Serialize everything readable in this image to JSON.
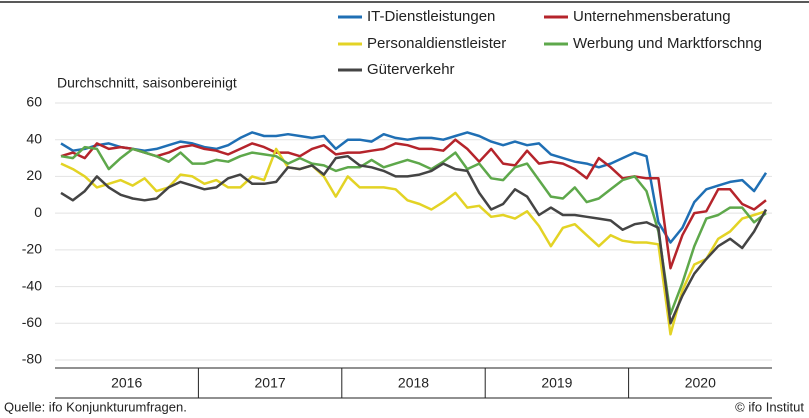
{
  "chart_data": {
    "type": "line",
    "subtitle": "Durchschnitt, saisonbereinigt",
    "source": "Quelle: ifo Konjunkturumfragen.",
    "copyright": "© ifo Institut",
    "x": [
      2016.042,
      2016.125,
      2016.208,
      2016.292,
      2016.375,
      2016.458,
      2016.542,
      2016.625,
      2016.708,
      2016.792,
      2016.875,
      2016.958,
      2017.042,
      2017.125,
      2017.208,
      2017.292,
      2017.375,
      2017.458,
      2017.542,
      2017.625,
      2017.708,
      2017.792,
      2017.875,
      2017.958,
      2018.042,
      2018.125,
      2018.208,
      2018.292,
      2018.375,
      2018.458,
      2018.542,
      2018.625,
      2018.708,
      2018.792,
      2018.875,
      2018.958,
      2019.042,
      2019.125,
      2019.208,
      2019.292,
      2019.375,
      2019.458,
      2019.542,
      2019.625,
      2019.708,
      2019.792,
      2019.875,
      2019.958,
      2020.042,
      2020.125,
      2020.208,
      2020.292,
      2020.375,
      2020.458,
      2020.542,
      2020.625,
      2020.708,
      2020.792,
      2020.875,
      2020.958
    ],
    "xlim": [
      2016,
      2021
    ],
    "xticks": [
      {
        "value": 2016.5,
        "label": "2016"
      },
      {
        "value": 2017.5,
        "label": "2017"
      },
      {
        "value": 2018.5,
        "label": "2018"
      },
      {
        "value": 2019.5,
        "label": "2019"
      },
      {
        "value": 2020.5,
        "label": "2020"
      }
    ],
    "ylim": [
      -80,
      60
    ],
    "yticks": [
      -80,
      -60,
      -40,
      -20,
      0,
      20,
      40,
      60
    ],
    "grid": true,
    "legend": "top",
    "series": [
      {
        "name": "IT-Dienstleistungen",
        "color": "#1f6fb4",
        "values": [
          38,
          34,
          35,
          37,
          38,
          36,
          35,
          34,
          35,
          37,
          39,
          38,
          36,
          35,
          37,
          41,
          44,
          42,
          42,
          43,
          42,
          41,
          42,
          35,
          40,
          40,
          39,
          43,
          41,
          40,
          41,
          41,
          40,
          42,
          44,
          42,
          39,
          37,
          39,
          37,
          38,
          32,
          30,
          28,
          27,
          25,
          27,
          30,
          33,
          31,
          -5,
          -16,
          -8,
          6,
          13,
          15,
          17,
          18,
          12,
          22
        ]
      },
      {
        "name": "Unternehmensberatung",
        "color": "#b5242b",
        "values": [
          31,
          33,
          30,
          38,
          35,
          36,
          35,
          33,
          31,
          33,
          36,
          37,
          35,
          34,
          32,
          35,
          38,
          36,
          33,
          33,
          31,
          35,
          37,
          32,
          33,
          33,
          34,
          35,
          38,
          37,
          35,
          35,
          34,
          40,
          35,
          28,
          35,
          27,
          26,
          34,
          27,
          28,
          27,
          24,
          19,
          30,
          25,
          19,
          20,
          19,
          19,
          -30,
          -12,
          0,
          1,
          13,
          13,
          5,
          2,
          7
        ]
      },
      {
        "name": "Personaldienstleister",
        "color": "#e3d325",
        "values": [
          27,
          24,
          20,
          14,
          16,
          18,
          15,
          19,
          12,
          14,
          21,
          20,
          16,
          18,
          14,
          14,
          20,
          18,
          35,
          25,
          24,
          26,
          20,
          9,
          20,
          14,
          14,
          14,
          13,
          7,
          5,
          2,
          6,
          11,
          3,
          4,
          -2,
          -1,
          -3,
          1,
          -7,
          -18,
          -8,
          -6,
          -12,
          -18,
          -12,
          -15,
          -16,
          -16,
          -17,
          -66,
          -42,
          -28,
          -25,
          -14,
          -10,
          -3,
          -1,
          1
        ]
      },
      {
        "name": "Werbung und Marktforschng",
        "color": "#5ea84b",
        "values": [
          31,
          30,
          36,
          35,
          24,
          30,
          35,
          33,
          31,
          28,
          33,
          27,
          27,
          29,
          28,
          31,
          33,
          32,
          31,
          27,
          30,
          27,
          26,
          23,
          25,
          25,
          29,
          25,
          27,
          29,
          27,
          24,
          28,
          33,
          24,
          27,
          19,
          18,
          25,
          27,
          18,
          9,
          8,
          14,
          6,
          8,
          13,
          18,
          20,
          12,
          -10,
          -55,
          -38,
          -18,
          -3,
          -1,
          3,
          3,
          -5,
          0
        ]
      },
      {
        "name": "Güterverkehr",
        "color": "#444444",
        "values": [
          11,
          7,
          12,
          20,
          14,
          10,
          8,
          7,
          8,
          14,
          17,
          15,
          13,
          14,
          19,
          21,
          16,
          16,
          17,
          25,
          24,
          26,
          21,
          30,
          31,
          26,
          25,
          23,
          20,
          20,
          21,
          23,
          27,
          24,
          23,
          11,
          2,
          5,
          13,
          9,
          -1,
          3,
          -1,
          -1,
          -2,
          -3,
          -4,
          -9,
          -6,
          -5,
          -8,
          -60,
          -45,
          -33,
          -25,
          -18,
          -14,
          -19,
          -10,
          2
        ]
      }
    ]
  }
}
